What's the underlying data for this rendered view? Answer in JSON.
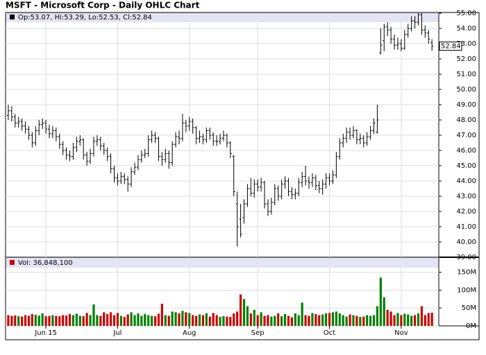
{
  "chart_data": {
    "type": "ohlc",
    "title": "MSFT - Microsoft Corp - Daily OHLC Chart",
    "ohlc_label": "Op:53.07, Hi:53.29, Lo:52.53, Cl:52.84",
    "volume_label": "Vol: 36,848,100",
    "xticks": [
      {
        "value": 11,
        "label": "Jun 15"
      },
      {
        "value": 32,
        "label": "Jul"
      },
      {
        "value": 53,
        "label": "Aug"
      },
      {
        "value": 73,
        "label": "Sep"
      },
      {
        "value": 94,
        "label": "Oct"
      },
      {
        "value": 115,
        "label": "Nov"
      }
    ],
    "xlim": [
      -0.8,
      126
    ],
    "ylim": [
      39,
      55
    ],
    "yticks": [
      {
        "value": 39,
        "label": "39.00"
      },
      {
        "value": 40,
        "label": "40.00"
      },
      {
        "value": 41,
        "label": "41.00"
      },
      {
        "value": 42,
        "label": "42.00"
      },
      {
        "value": 43,
        "label": "43.00"
      },
      {
        "value": 44,
        "label": "44.00"
      },
      {
        "value": 45,
        "label": "45.00"
      },
      {
        "value": 46,
        "label": "46.00"
      },
      {
        "value": 47,
        "label": "47.00"
      },
      {
        "value": 48,
        "label": "48.00"
      },
      {
        "value": 49,
        "label": "49.00"
      },
      {
        "value": 50,
        "label": "50.00"
      },
      {
        "value": 51,
        "label": "51.00"
      },
      {
        "value": 52,
        "label": "52.00"
      },
      {
        "value": 53,
        "label": "53.00"
      },
      {
        "value": 54,
        "label": "54.00"
      },
      {
        "value": 55,
        "label": "55.00"
      }
    ],
    "volume_ylim": [
      0,
      190
    ],
    "volume_yticks": [
      {
        "value": 0,
        "label": "0M"
      },
      {
        "value": 50,
        "label": "50M"
      },
      {
        "value": 100,
        "label": "100M"
      },
      {
        "value": 150,
        "label": "150M"
      }
    ],
    "grid": true,
    "bar_color": "#000000",
    "up_color": "#008000",
    "down_color": "#cc0000",
    "open": [
      48.3,
      48.6,
      48.2,
      47.8,
      47.9,
      47.6,
      47.4,
      47.0,
      46.5,
      47.3,
      47.7,
      47.8,
      47.4,
      47.1,
      47.3,
      46.9,
      46.4,
      46.0,
      45.7,
      45.6,
      46.2,
      46.6,
      46.7,
      45.7,
      45.3,
      45.8,
      46.6,
      46.7,
      46.3,
      46.0,
      45.6,
      44.8,
      44.2,
      44.0,
      44.3,
      44.1,
      43.8,
      44.6,
      44.9,
      45.4,
      45.7,
      45.8,
      46.7,
      47.0,
      46.8,
      45.6,
      45.4,
      45.8,
      45.2,
      46.4,
      46.9,
      46.8,
      47.8,
      47.6,
      47.9,
      47.5,
      46.8,
      46.9,
      46.7,
      47.3,
      47.0,
      46.6,
      46.6,
      46.8,
      47.0,
      46.5,
      45.6,
      42.5,
      41.5,
      41.6,
      42.5,
      43.5,
      43.2,
      43.8,
      43.6,
      43.9,
      42.5,
      42.0,
      42.6,
      43.5,
      43.0,
      43.8,
      44.0,
      43.3,
      43.1,
      43.2,
      43.9,
      44.3,
      44.0,
      43.9,
      44.2,
      43.7,
      43.5,
      43.8,
      44.2,
      44.0,
      44.4,
      45.6,
      46.5,
      46.8,
      47.2,
      47.0,
      47.3,
      46.7,
      46.8,
      46.5,
      46.9,
      47.3,
      47.2,
      52.4,
      53.2,
      54.1,
      53.9,
      53.3,
      52.9,
      53.0,
      52.7,
      53.6,
      54.0,
      54.5,
      54.4,
      54.9,
      53.9,
      53.7,
      53.07
    ],
    "high": [
      49.0,
      48.9,
      48.4,
      48.2,
      48.1,
      47.9,
      47.6,
      47.2,
      47.6,
      48.0,
      48.1,
      48.0,
      47.7,
      47.6,
      47.5,
      47.1,
      46.6,
      46.2,
      46.0,
      46.5,
      46.9,
      47.0,
      46.8,
      45.9,
      46.1,
      46.9,
      47.0,
      46.9,
      46.5,
      46.2,
      45.8,
      45.0,
      44.5,
      44.6,
      44.5,
      44.3,
      44.9,
      45.2,
      45.7,
      46.0,
      46.1,
      47.0,
      47.3,
      47.2,
      46.9,
      45.9,
      46.1,
      46.0,
      46.6,
      47.2,
      47.3,
      48.4,
      48.0,
      48.2,
      48.1,
      47.6,
      47.3,
      47.1,
      47.5,
      47.5,
      47.2,
      47.0,
      47.1,
      47.3,
      47.1,
      46.6,
      45.7,
      43.3,
      42.5,
      42.8,
      43.8,
      44.2,
      44.1,
      44.1,
      44.2,
      44.0,
      42.8,
      42.9,
      43.8,
      43.7,
      44.1,
      44.3,
      44.2,
      43.6,
      43.5,
      44.2,
      44.6,
      45.0,
      44.3,
      44.5,
      44.4,
      44.0,
      44.1,
      44.5,
      44.5,
      44.7,
      45.9,
      46.8,
      47.1,
      47.5,
      47.5,
      47.6,
      47.4,
      47.1,
      47.0,
      47.2,
      47.6,
      48.1,
      49.0,
      54.0,
      54.3,
      54.4,
      54.1,
      53.6,
      53.4,
      53.3,
      53.9,
      54.3,
      54.8,
      54.8,
      55.0,
      55.0,
      54.2,
      53.9,
      53.29
    ],
    "low": [
      48.0,
      47.9,
      47.5,
      47.5,
      47.3,
      47.1,
      46.7,
      46.2,
      46.3,
      47.0,
      47.4,
      47.1,
      46.8,
      46.8,
      46.6,
      46.1,
      45.7,
      45.4,
      45.3,
      45.4,
      45.9,
      46.3,
      45.4,
      45.0,
      45.1,
      45.6,
      46.3,
      46.0,
      45.7,
      45.3,
      44.5,
      43.9,
      43.7,
      43.8,
      43.8,
      43.3,
      43.6,
      44.4,
      44.7,
      45.2,
      45.5,
      45.6,
      46.5,
      46.5,
      45.3,
      45.0,
      45.2,
      44.8,
      45.0,
      46.2,
      46.4,
      46.6,
      47.2,
      47.3,
      47.1,
      46.4,
      46.5,
      46.4,
      46.5,
      46.7,
      46.3,
      46.3,
      46.4,
      46.6,
      46.2,
      45.5,
      43.0,
      39.7,
      40.3,
      41.2,
      42.3,
      43.0,
      42.9,
      43.3,
      43.3,
      42.2,
      41.7,
      41.8,
      42.4,
      42.7,
      42.8,
      43.5,
      43.0,
      42.8,
      42.8,
      43.0,
      43.6,
      43.7,
      43.5,
      43.6,
      43.4,
      43.2,
      43.1,
      43.5,
      43.7,
      43.8,
      44.2,
      45.4,
      46.2,
      46.5,
      46.7,
      46.8,
      46.4,
      46.4,
      46.2,
      46.3,
      46.7,
      47.1,
      47.1,
      52.3,
      52.5,
      53.5,
      53.0,
      52.6,
      52.6,
      52.5,
      52.6,
      53.4,
      53.8,
      54.0,
      54.2,
      53.6,
      53.4,
      53.0,
      52.53
    ],
    "close": [
      48.6,
      48.2,
      47.8,
      47.9,
      47.6,
      47.4,
      47.0,
      46.5,
      47.3,
      47.7,
      47.8,
      47.4,
      47.1,
      47.3,
      46.9,
      46.4,
      46.0,
      45.7,
      45.6,
      46.2,
      46.6,
      46.7,
      45.7,
      45.3,
      45.8,
      46.6,
      46.7,
      46.3,
      46.0,
      45.6,
      44.8,
      44.2,
      44.0,
      44.3,
      44.1,
      43.8,
      44.6,
      44.9,
      45.4,
      45.7,
      45.8,
      46.7,
      47.0,
      46.8,
      45.6,
      45.4,
      45.8,
      45.2,
      46.4,
      46.9,
      46.8,
      47.8,
      47.6,
      47.9,
      47.5,
      46.8,
      46.9,
      46.7,
      47.3,
      47.0,
      46.6,
      46.6,
      46.8,
      47.0,
      46.5,
      45.8,
      43.3,
      41.0,
      40.5,
      42.5,
      43.5,
      43.2,
      43.8,
      43.6,
      43.9,
      42.5,
      42.0,
      42.6,
      43.5,
      43.0,
      43.8,
      44.0,
      43.3,
      43.1,
      43.2,
      43.9,
      44.3,
      44.0,
      43.9,
      44.2,
      43.7,
      43.5,
      43.8,
      44.2,
      44.0,
      44.4,
      45.6,
      46.5,
      46.8,
      47.2,
      47.0,
      47.3,
      46.7,
      46.8,
      46.5,
      46.9,
      47.3,
      47.8,
      48.0,
      52.9,
      54.1,
      53.9,
      53.3,
      52.9,
      53.0,
      52.7,
      53.6,
      54.0,
      54.5,
      54.4,
      54.9,
      53.9,
      53.7,
      53.3,
      52.84
    ],
    "volume": [
      30,
      28,
      29,
      27,
      26,
      30,
      28,
      33,
      31,
      29,
      35,
      27,
      28,
      30,
      28,
      27,
      30,
      29,
      33,
      30,
      34,
      28,
      27,
      36,
      30,
      60,
      30,
      28,
      38,
      33,
      38,
      30,
      36,
      28,
      25,
      32,
      38,
      30,
      35,
      28,
      33,
      30,
      28,
      27,
      34,
      62,
      30,
      28,
      40,
      38,
      35,
      42,
      38,
      36,
      30,
      28,
      32,
      30,
      35,
      26,
      36,
      30,
      25,
      27,
      26,
      25,
      35,
      40,
      88,
      75,
      55,
      35,
      45,
      30,
      38,
      28,
      30,
      26,
      28,
      35,
      27,
      33,
      28,
      24,
      35,
      30,
      65,
      30,
      28,
      36,
      33,
      30,
      32,
      35,
      36,
      38,
      40,
      35,
      30,
      26,
      32,
      30,
      28,
      25,
      26,
      30,
      28,
      30,
      55,
      135,
      80,
      45,
      40,
      30,
      36,
      30,
      34,
      32,
      28,
      30,
      35,
      55,
      30,
      36,
      36.8481
    ]
  }
}
